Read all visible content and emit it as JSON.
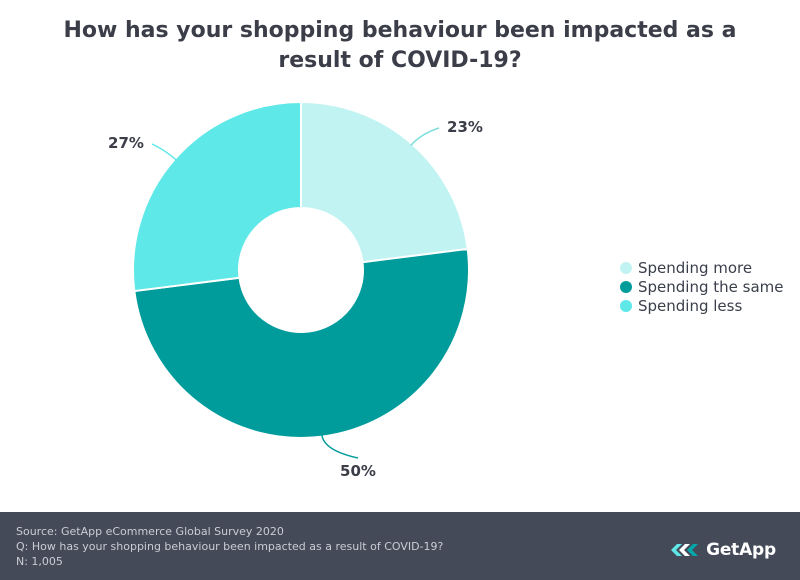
{
  "chart_data": {
    "type": "pie",
    "title": "How has your shopping behaviour been impacted as a result of COVID-19?",
    "categories": [
      "Spending more",
      "Spending the same",
      "Spending less"
    ],
    "values": [
      23,
      50,
      27
    ],
    "value_labels": [
      "23%",
      "50%",
      "27%"
    ],
    "colors": [
      "#c2f3f3",
      "#009b9b",
      "#5fe8e8"
    ],
    "legend": {
      "position": "right"
    },
    "donut": true
  },
  "title_lines": [
    "How has your shopping behaviour been impacted as a",
    "result of COVID-19?"
  ],
  "footer": {
    "source": "Source: GetApp eCommerce Global Survey 2020",
    "question": "Q: How has your shopping behaviour been impacted as a result of COVID-19?",
    "sample": "N: 1,005",
    "logo": "GetApp",
    "logo_icon": "getapp-chevrons-icon",
    "background": "#444a58"
  }
}
